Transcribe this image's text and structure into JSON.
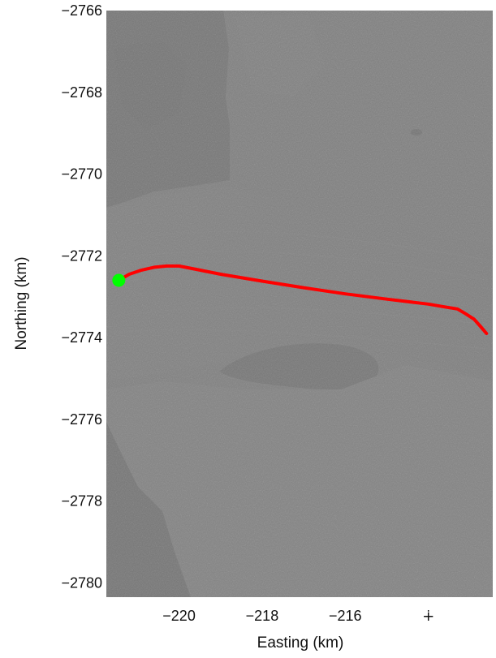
{
  "chart_data": {
    "type": "scatter",
    "xlabel": "Easting (km)",
    "ylabel": "Northing (km)",
    "xlim": [
      -221.75,
      -212.45
    ],
    "ylim": [
      -2780.35,
      -2766.0
    ],
    "x_ticks": [
      -220,
      -218,
      -216,
      -214
    ],
    "x_tick_labels": [
      "−220",
      "−218",
      "−216",
      "∔"
    ],
    "y_ticks": [
      -2766,
      -2768,
      -2770,
      -2772,
      -2774,
      -2776,
      -2778,
      -2780
    ],
    "y_tick_labels": [
      "−2766",
      "−2768",
      "−2770",
      "−2772",
      "−2774",
      "−2776",
      "−2778",
      "−2780"
    ],
    "background": "grayscale satellite image",
    "series": [
      {
        "kind": "line",
        "color": "#ff0000",
        "x": [
          -221.45,
          -221.2,
          -220.9,
          -220.6,
          -220.3,
          -220.0,
          -219.5,
          -219.0,
          -218.0,
          -217.0,
          -216.0,
          -215.0,
          -214.0,
          -213.6,
          -213.3,
          -213.1,
          -212.9,
          -212.75,
          -212.6
        ],
        "y": [
          -2772.6,
          -2772.45,
          -2772.35,
          -2772.28,
          -2772.25,
          -2772.25,
          -2772.35,
          -2772.45,
          -2772.62,
          -2772.78,
          -2772.93,
          -2773.06,
          -2773.18,
          -2773.25,
          -2773.3,
          -2773.42,
          -2773.55,
          -2773.72,
          -2773.9
        ]
      },
      {
        "kind": "point",
        "color": "#00ff00",
        "x": [
          -221.45
        ],
        "y": [
          -2772.6
        ]
      }
    ]
  }
}
